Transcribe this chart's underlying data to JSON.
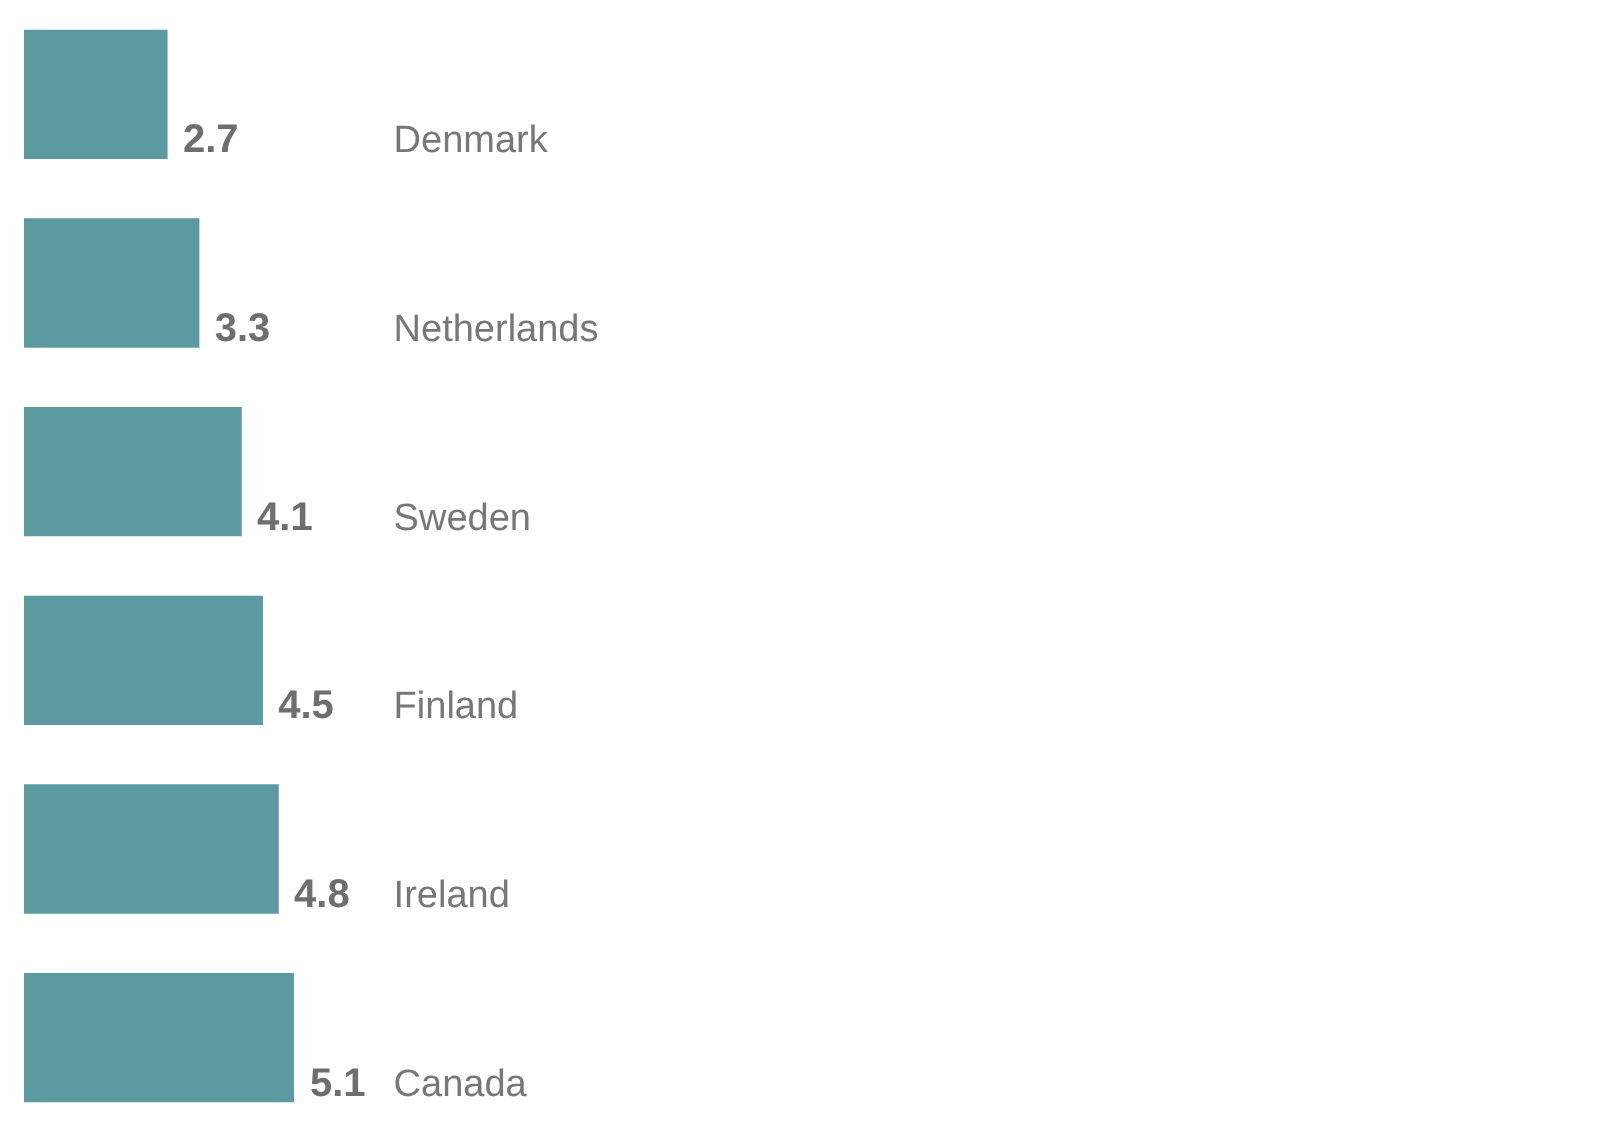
{
  "chart_data": {
    "type": "bar",
    "orientation": "horizontal",
    "categories": [
      "Denmark",
      "Netherlands",
      "Sweden",
      "Finland",
      "Ireland",
      "Canada"
    ],
    "values": [
      2.7,
      3.3,
      4.1,
      4.5,
      4.8,
      5.1
    ],
    "color": "#5b9aa0",
    "data_labels": true,
    "tick_labels": false
  }
}
